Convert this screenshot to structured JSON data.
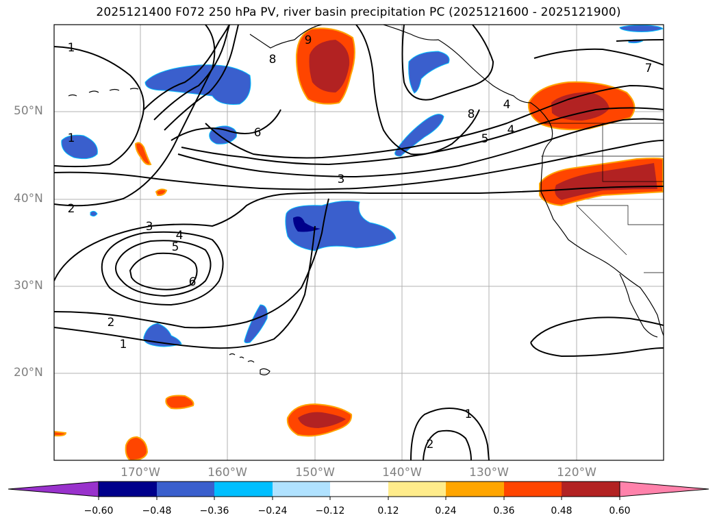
{
  "title": "2025121400 F072 250 hPa PV, river basin precipitation PC (2025121600 - 2025121900)",
  "map": {
    "lat_labels": [
      "50°N",
      "40°N",
      "30°N",
      "20°N"
    ],
    "lon_labels": [
      "170°W",
      "160°W",
      "150°W",
      "140°W",
      "130°W",
      "120°W"
    ],
    "contour_labels": [
      "1",
      "1",
      "2",
      "3",
      "4",
      "5",
      "6",
      "6",
      "3",
      "5",
      "4",
      "8",
      "7",
      "2",
      "1",
      "1",
      "2",
      "9",
      "8",
      "4"
    ]
  },
  "colorbar": {
    "ticks": [
      "−0.60",
      "−0.48",
      "−0.36",
      "−0.24",
      "−0.12",
      "0.12",
      "0.24",
      "0.36",
      "0.48",
      "0.60"
    ],
    "colors": [
      "#9932cc",
      "#00008b",
      "#3a5fcd",
      "#00bfff",
      "#b0e2ff",
      "#ffffff",
      "#ffec8b",
      "#ffa500",
      "#ff4500",
      "#b22222",
      "#ff82ab"
    ]
  }
}
